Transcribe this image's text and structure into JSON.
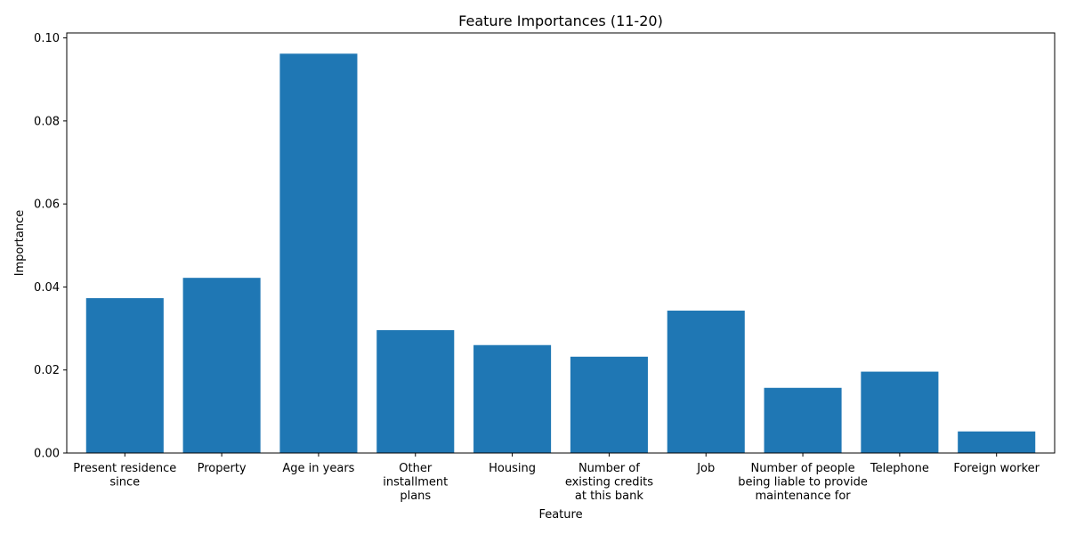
{
  "chart_data": {
    "type": "bar",
    "title": "Feature Importances (11-20)",
    "xlabel": "Feature",
    "ylabel": "Importance",
    "categories": [
      [
        "Present residence",
        "since"
      ],
      [
        "Property"
      ],
      [
        "Age in years"
      ],
      [
        "Other",
        "installment",
        "plans"
      ],
      [
        "Housing"
      ],
      [
        "Number of",
        "existing credits",
        "at this bank"
      ],
      [
        "Job"
      ],
      [
        "Number of people",
        "being liable to provide",
        "maintenance for"
      ],
      [
        "Telephone"
      ],
      [
        "Foreign worker"
      ]
    ],
    "values": [
      0.0373,
      0.0422,
      0.0962,
      0.0296,
      0.026,
      0.0232,
      0.0343,
      0.0157,
      0.0196,
      0.0052
    ],
    "ylim": [
      0,
      0.1012
    ],
    "yticks": [
      0.0,
      0.02,
      0.04,
      0.06,
      0.08,
      0.1
    ],
    "ytick_labels": [
      "0.00",
      "0.02",
      "0.04",
      "0.06",
      "0.08",
      "0.10"
    ],
    "bar_color": "#1f77b4",
    "grid": false
  }
}
